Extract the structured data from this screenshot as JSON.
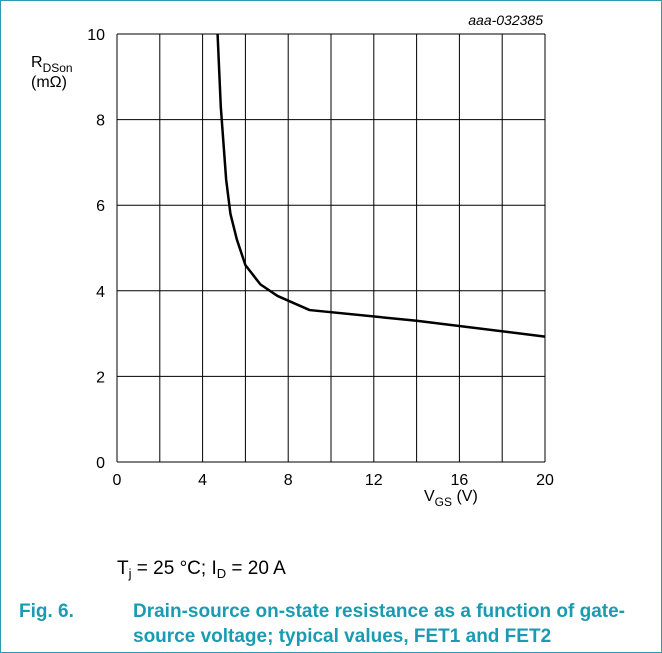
{
  "chart_data": {
    "type": "line",
    "annotation": "aaa-032385",
    "y_label": {
      "main": "R",
      "sub": "DSon",
      "unit": "(mΩ)"
    },
    "x_label": {
      "main": "V",
      "sub": "GS",
      "unit": " (V)"
    },
    "x": [
      4.7,
      4.85,
      5.1,
      5.3,
      5.6,
      6.0,
      6.7,
      7.5,
      9,
      14,
      20
    ],
    "series": [
      {
        "color": "#000000",
        "values": [
          10,
          8.3,
          6.6,
          5.8,
          5.2,
          4.6,
          4.15,
          3.88,
          3.55,
          3.3,
          2.93
        ]
      }
    ],
    "xlim": [
      0,
      20
    ],
    "xticks": [
      0,
      4,
      8,
      12,
      16,
      20
    ],
    "xminor_grid": [
      2,
      6,
      10,
      14,
      18
    ],
    "ylim": [
      0,
      10
    ],
    "yticks": [
      0,
      2,
      4,
      6,
      8,
      10
    ],
    "grid": true,
    "conditions": [
      "T",
      "j",
      " = 25 °C; I",
      "D",
      " = 20 A"
    ],
    "figure_number": "Fig. 6.",
    "caption": "Drain-source on-state resistance as a function of gate-source voltage; typical values, FET1 and FET2"
  }
}
